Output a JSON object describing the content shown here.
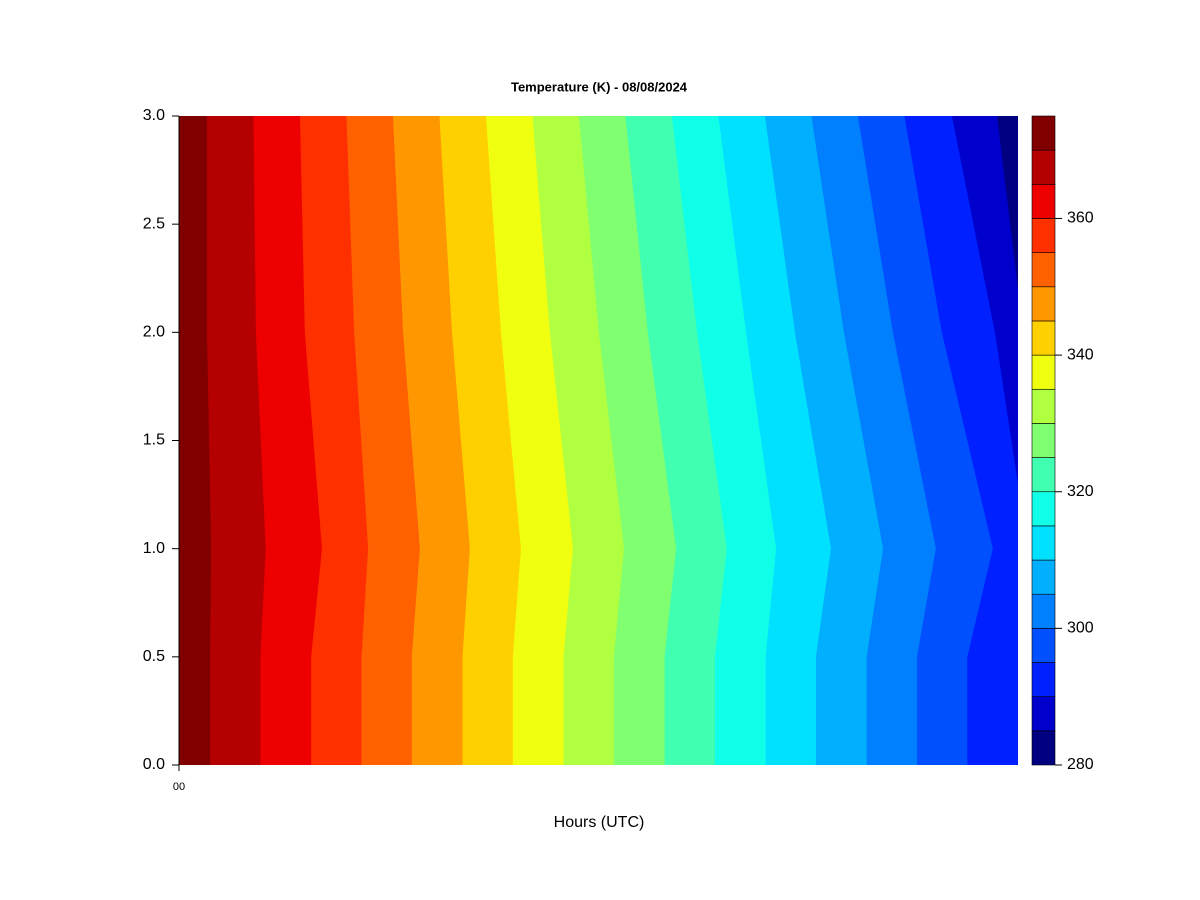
{
  "chart_data": {
    "type": "contour",
    "title": "Temperature (K) - 08/08/2024",
    "x_label": "Hours (UTC)",
    "xlim": [
      0,
      24
    ],
    "xticks": [
      {
        "value": 0,
        "label": "00"
      }
    ],
    "ylim": [
      0,
      3
    ],
    "yticks": [
      {
        "value": 0,
        "label": "0.0"
      },
      {
        "value": 0.5,
        "label": "0.5"
      },
      {
        "value": 1,
        "label": "1.0"
      },
      {
        "value": 1.5,
        "label": "1.5"
      },
      {
        "value": 2,
        "label": "2.0"
      },
      {
        "value": 2.5,
        "label": "2.5"
      },
      {
        "value": 3,
        "label": "3.0"
      }
    ],
    "levels": [
      280,
      285,
      290,
      295,
      300,
      305,
      310,
      315,
      320,
      325,
      330,
      335,
      340,
      345,
      350,
      355,
      360,
      365,
      370,
      375
    ],
    "colors": [
      "#000080",
      "#0000cc",
      "#0020ff",
      "#0050ff",
      "#0080ff",
      "#00b0ff",
      "#00e0ff",
      "#10ffe8",
      "#40ffb0",
      "#80ff70",
      "#b0ff40",
      "#f0ff10",
      "#ffd000",
      "#ff9800",
      "#ff6000",
      "#ff3000",
      "#ee0000",
      "#b40000",
      "#800000"
    ],
    "colorbar_ticks": [
      280,
      300,
      320,
      340,
      360
    ],
    "contours": [
      {
        "level": 370,
        "x": [
          0.8,
          0.8,
          0.92,
          0.89,
          0.89
        ],
        "y": [
          3,
          2,
          1,
          0.5,
          0
        ]
      },
      {
        "level": 365,
        "x": [
          2.13,
          2.2,
          2.48,
          2.33,
          2.33
        ],
        "y": [
          3,
          2,
          1,
          0.5,
          0
        ]
      },
      {
        "level": 360,
        "x": [
          3.46,
          3.6,
          4.09,
          3.78,
          3.78
        ],
        "y": [
          3,
          2,
          1,
          0.5,
          0
        ]
      },
      {
        "level": 355,
        "x": [
          4.79,
          5.01,
          5.41,
          5.22,
          5.22
        ],
        "y": [
          3,
          2,
          1,
          0.5,
          0
        ]
      },
      {
        "level": 350,
        "x": [
          6.12,
          6.41,
          6.89,
          6.66,
          6.66
        ],
        "y": [
          3,
          2,
          1,
          0.5,
          0
        ]
      },
      {
        "level": 345,
        "x": [
          7.45,
          7.81,
          8.32,
          8.11,
          8.11
        ],
        "y": [
          3,
          2,
          1,
          0.5,
          0
        ]
      },
      {
        "level": 340,
        "x": [
          8.78,
          9.21,
          9.78,
          9.55,
          9.55
        ],
        "y": [
          3,
          2,
          1,
          0.5,
          0
        ]
      },
      {
        "level": 335,
        "x": [
          10.11,
          10.61,
          11.27,
          11.0,
          11.0
        ],
        "y": [
          3,
          2,
          1,
          0.5,
          0
        ]
      },
      {
        "level": 330,
        "x": [
          11.44,
          12.01,
          12.73,
          12.44,
          12.44
        ],
        "y": [
          3,
          2,
          1,
          0.5,
          0
        ]
      },
      {
        "level": 325,
        "x": [
          12.77,
          13.41,
          14.22,
          13.89,
          13.89
        ],
        "y": [
          3,
          2,
          1,
          0.5,
          0
        ]
      },
      {
        "level": 320,
        "x": [
          14.1,
          14.82,
          15.67,
          15.33,
          15.33
        ],
        "y": [
          3,
          2,
          1,
          0.5,
          0
        ]
      },
      {
        "level": 315,
        "x": [
          15.43,
          16.22,
          17.08,
          16.78,
          16.78
        ],
        "y": [
          3,
          2,
          1,
          0.5,
          0
        ]
      },
      {
        "level": 310,
        "x": [
          16.76,
          17.62,
          18.65,
          18.22,
          18.22
        ],
        "y": [
          3,
          2,
          1,
          0.5,
          0
        ]
      },
      {
        "level": 305,
        "x": [
          18.09,
          19.02,
          20.14,
          19.67,
          19.67
        ],
        "y": [
          3,
          2,
          1,
          0.5,
          0
        ]
      },
      {
        "level": 300,
        "x": [
          19.42,
          20.42,
          21.65,
          21.11,
          21.11
        ],
        "y": [
          3,
          2,
          1,
          0.5,
          0
        ]
      },
      {
        "level": 295,
        "x": [
          20.75,
          21.82,
          23.28,
          22.55,
          22.55
        ],
        "y": [
          3,
          2,
          1,
          0.5,
          0
        ]
      },
      {
        "level": 290,
        "x": [
          22.11,
          23.34,
          24
        ],
        "y": [
          3,
          2,
          1.3
        ]
      },
      {
        "level": 285,
        "x": [
          23.4,
          24
        ],
        "y": [
          3,
          2.2
        ]
      }
    ]
  }
}
